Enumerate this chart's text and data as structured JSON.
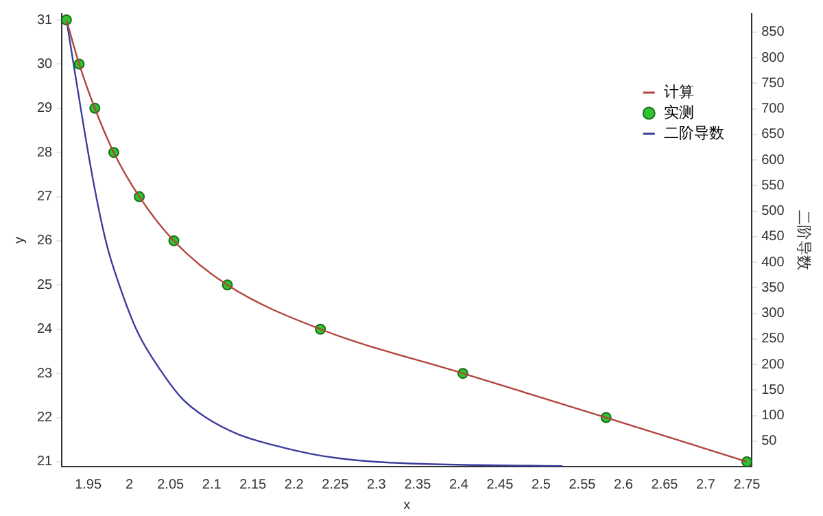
{
  "chart_data": {
    "type": "line",
    "xlabel": "x",
    "ylabel": "y",
    "y2label": "二阶导数",
    "xlim": [
      1.918,
      2.756
    ],
    "xticks": [
      1.95,
      2,
      2.05,
      2.1,
      2.15,
      2.2,
      2.25,
      2.3,
      2.35,
      2.4,
      2.45,
      2.5,
      2.55,
      2.6,
      2.65,
      2.7,
      2.75
    ],
    "ylim": [
      20.89,
      31.14
    ],
    "yticks": [
      21,
      22,
      23,
      24,
      25,
      26,
      27,
      28,
      29,
      30,
      31
    ],
    "y2lim": [
      0,
      886
    ],
    "y2ticks": [
      50,
      100,
      150,
      200,
      250,
      300,
      350,
      400,
      450,
      500,
      550,
      600,
      650,
      700,
      750,
      800,
      850
    ],
    "grid": false,
    "legend": "top right",
    "series": [
      {
        "name": "计算",
        "type": "line",
        "marker": "none",
        "color": "#b0453c",
        "x": [
          1.9235,
          1.939,
          1.958,
          1.981,
          2.012,
          2.054,
          2.119,
          2.232,
          2.405,
          2.579,
          2.75
        ],
        "values": [
          31,
          30,
          29,
          28,
          27,
          26,
          25,
          24,
          23,
          22,
          21
        ]
      },
      {
        "name": "实测",
        "type": "scatter",
        "marker": "circle",
        "color": "#2fc42f",
        "x": [
          1.9235,
          1.939,
          1.958,
          1.981,
          2.012,
          2.054,
          2.119,
          2.232,
          2.405,
          2.579,
          2.75
        ],
        "values": [
          31,
          30,
          29,
          28,
          27,
          26,
          25,
          24,
          23,
          22,
          21
        ]
      },
      {
        "name": "二阶导数",
        "type": "line",
        "marker": "none",
        "axis": "y2",
        "color": "#3c3c9c",
        "x": [
          1.9235,
          1.932,
          1.955,
          1.972,
          1.988,
          2.01,
          2.038,
          2.064,
          2.092,
          2.131,
          2.175,
          2.23,
          2.286,
          2.341,
          2.424,
          2.526
        ],
        "values": [
          875,
          789,
          568,
          437,
          354,
          263,
          188,
          133,
          97,
          64,
          42,
          22,
          11,
          6,
          3,
          1
        ]
      }
    ]
  }
}
